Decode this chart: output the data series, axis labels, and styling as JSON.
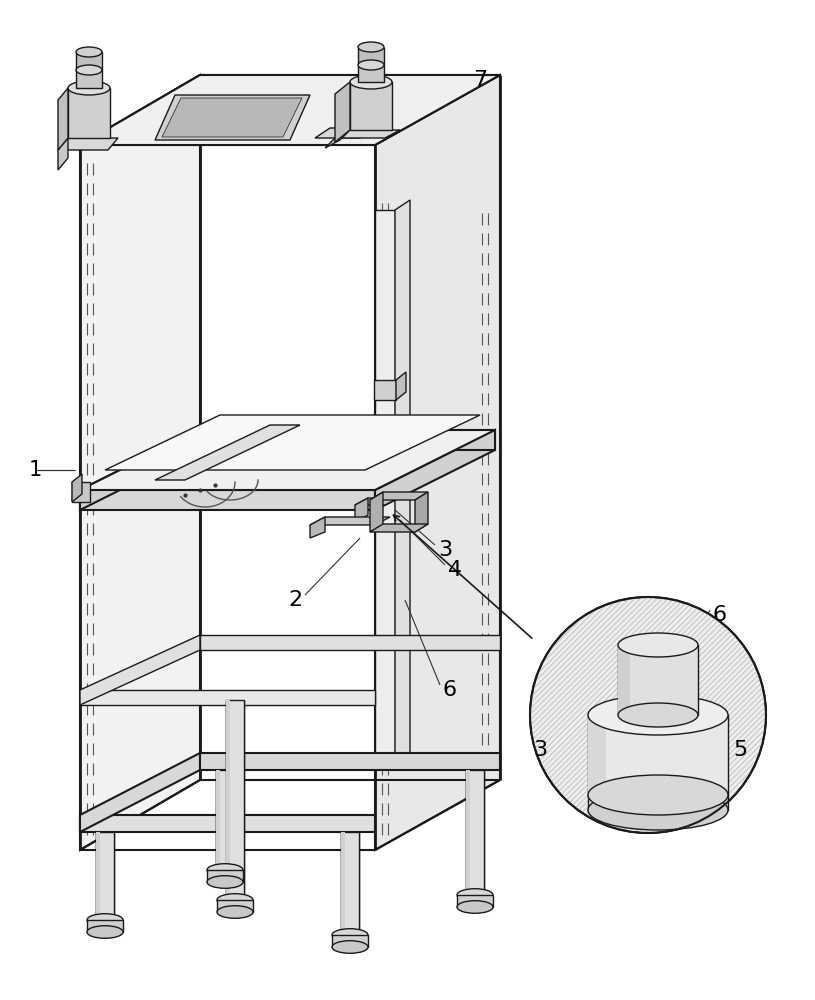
{
  "background_color": "#ffffff",
  "line_color": "#1a1a1a",
  "face_light": "#f5f5f5",
  "face_mid": "#ebebeb",
  "face_dark": "#e0e0e0",
  "figsize": [
    8.15,
    10.0
  ],
  "dpi": 100
}
